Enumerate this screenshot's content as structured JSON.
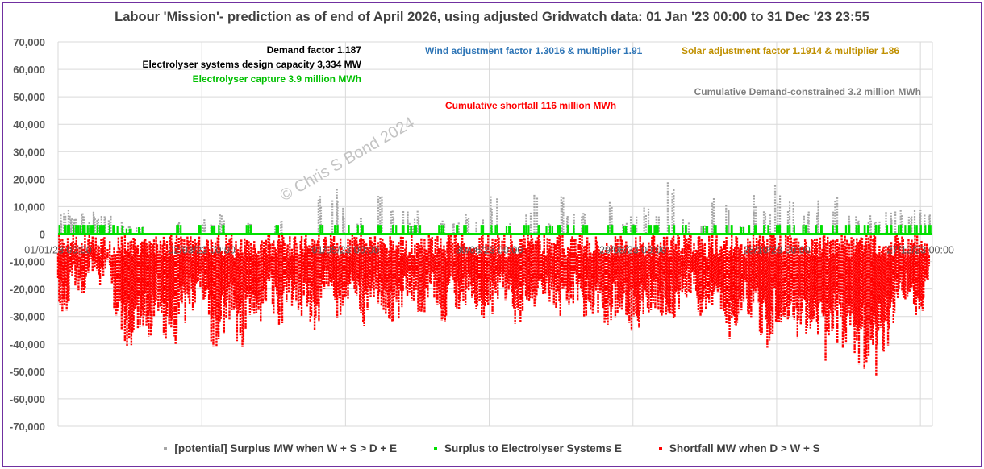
{
  "chart_data": {
    "type": "scatter",
    "title": "Labour 'Mission'- prediction as of end of April 2026, using adjusted Gridwatch data:  01 Jan '23 00:00 to 31 Dec '23 23:55",
    "ylim": [
      -70000,
      70000
    ],
    "y_ticks": [
      "70,000",
      "60,000",
      "50,000",
      "40,000",
      "30,000",
      "20,000",
      "10,000",
      "0",
      "-10,000",
      "-20,000",
      "-30,000",
      "-40,000",
      "-50,000",
      "-60,000",
      "-70,000"
    ],
    "x_ticks": [
      "01/01/23 00:00",
      "02/03/23 00:00",
      "01/05/23 00:00",
      "30/06/23 00:00",
      "29/08/23 00:00",
      "28/10/23 00:00",
      "27/12/23 00:00"
    ],
    "grid": true,
    "legend_position": "bottom",
    "annotations": {
      "demand_factor": "Demand factor 1.187",
      "design_capacity": "Electrolyser systems design capacity 3,334 MW",
      "electrolyser_capture": "Electrolyser capture 3.9 million MWh",
      "wind_factor": "Wind adjustment factor 1.3016 & multiplier 1.91",
      "solar_factor": "Solar adjustment factor 1.1914 & multiplier 1.86",
      "cumulative_demand": "Cumulative Demand-constrained 3.2 million MWh",
      "shortfall": "Cumulative shortfall 116 million MWh",
      "watermark": "© Chris S Bond  2024"
    },
    "series": [
      {
        "name": "[potential] Surplus MW when W + S > D + E",
        "color": "#a6a6a6",
        "x_days": [
          2,
          4,
          6,
          8,
          10,
          12,
          14,
          16,
          19,
          22,
          26,
          30,
          34,
          50,
          60,
          64,
          68,
          80,
          92,
          110,
          116,
          120,
          126,
          134,
          140,
          145,
          148,
          150,
          160,
          166,
          170,
          176,
          182,
          188,
          196,
          200,
          205,
          210,
          214,
          220,
          230,
          236,
          240,
          246,
          250,
          256,
          262,
          270,
          274,
          280,
          286,
          290,
          296,
          300,
          306,
          312,
          318,
          324,
          330,
          334,
          338,
          342,
          347,
          351,
          355,
          359,
          363
        ],
        "values": [
          8000,
          9500,
          7000,
          6000,
          9000,
          7500,
          9000,
          6000,
          8500,
          7000,
          5000,
          3000,
          3500,
          5000,
          6000,
          4000,
          8500,
          5500,
          5000,
          14000,
          17000,
          10000,
          6500,
          19000,
          9000,
          9500,
          4500,
          9500,
          6000,
          6500,
          9000,
          6000,
          14000,
          4000,
          12000,
          17000,
          4000,
          16000,
          10000,
          10000,
          12000,
          4500,
          6500,
          11000,
          10000,
          21000,
          6000,
          4000,
          13500,
          12000,
          3000,
          15000,
          10000,
          20000,
          15000,
          10000,
          13000,
          14000,
          8000,
          7000,
          7500,
          5000,
          9000,
          9000,
          8500,
          9000,
          8000
        ]
      },
      {
        "name": "Surplus to Electrolyser Systems E",
        "color": "#00e000",
        "capacity_mw": 3334,
        "x_days": [
          2,
          4,
          6,
          8,
          10,
          12,
          14,
          16,
          19,
          22,
          26,
          30,
          34,
          50,
          60,
          64,
          68,
          80,
          92,
          110,
          116,
          120,
          126,
          134,
          140,
          145,
          148,
          150,
          160,
          166,
          170,
          176,
          182,
          188,
          196,
          200,
          205,
          210,
          214,
          220,
          230,
          236,
          240,
          246,
          250,
          256,
          262,
          270,
          274,
          280,
          286,
          290,
          296,
          300,
          306,
          312,
          318,
          324,
          330,
          334,
          338,
          342,
          347,
          351,
          355,
          359,
          363
        ],
        "values": [
          3334,
          3334,
          3334,
          3334,
          3334,
          3334,
          3334,
          3334,
          3334,
          3334,
          3000,
          2000,
          2500,
          3334,
          3334,
          3000,
          3334,
          3334,
          3334,
          3334,
          3334,
          3334,
          3334,
          3334,
          3334,
          3334,
          3000,
          3334,
          3334,
          3334,
          3334,
          3334,
          3334,
          3000,
          3334,
          3334,
          3000,
          3334,
          3334,
          3334,
          3334,
          3000,
          3334,
          3334,
          3334,
          3334,
          3334,
          3000,
          3334,
          3334,
          2500,
          3334,
          3334,
          3334,
          3334,
          3334,
          3334,
          3334,
          3334,
          3334,
          3334,
          3334,
          3334,
          3334,
          3334,
          3334,
          3334
        ]
      },
      {
        "name": "Shortfall MW when D > W + S",
        "color": "#ff0000",
        "x_days": [
          0,
          3,
          6,
          10,
          14,
          18,
          21,
          24,
          27,
          31,
          35,
          38,
          41,
          44,
          47,
          52,
          56,
          60,
          64,
          68,
          72,
          76,
          80,
          84,
          88,
          92,
          96,
          100,
          104,
          108,
          112,
          116,
          120,
          124,
          128,
          132,
          136,
          140,
          144,
          148,
          152,
          156,
          160,
          164,
          168,
          172,
          176,
          180,
          184,
          188,
          192,
          196,
          200,
          204,
          208,
          212,
          216,
          220,
          224,
          228,
          232,
          236,
          240,
          244,
          248,
          252,
          256,
          260,
          264,
          268,
          272,
          276,
          280,
          284,
          288,
          292,
          296,
          300,
          304,
          308,
          312,
          316,
          320,
          324,
          328,
          332,
          335,
          338,
          341,
          344,
          347,
          350,
          353,
          356,
          359,
          362,
          364
        ],
        "values": [
          -22000,
          -33000,
          -15000,
          -25000,
          -12000,
          -20000,
          -8000,
          -35000,
          -38000,
          -42000,
          -30000,
          -44000,
          -25000,
          -35000,
          -42000,
          -33000,
          -28000,
          -22000,
          -40000,
          -38000,
          -30000,
          -44000,
          -28000,
          -35000,
          -20000,
          -38000,
          -22000,
          -30000,
          -28000,
          -35000,
          -18000,
          -32000,
          -25000,
          -20000,
          -33000,
          -22000,
          -28000,
          -35000,
          -26000,
          -24000,
          -30000,
          -20000,
          -36000,
          -25000,
          -27000,
          -24000,
          -28000,
          -31000,
          -22000,
          -26000,
          -34000,
          -27000,
          -25000,
          -20000,
          -33000,
          -26000,
          -24000,
          -30000,
          -28000,
          -36000,
          -30000,
          -28000,
          -35000,
          -32000,
          -26000,
          -30000,
          -34000,
          -28000,
          -20000,
          -31000,
          -24000,
          -26000,
          -38000,
          -30000,
          -28000,
          -35000,
          -40000,
          -33000,
          -30000,
          -38000,
          -35000,
          -32000,
          -45000,
          -38000,
          -40000,
          -44000,
          -46000,
          -48000,
          -51000,
          -42000,
          -38000,
          -30000,
          -25000,
          -20000,
          -35000,
          -22000,
          -18000
        ]
      }
    ]
  },
  "legend": {
    "grey_label": "[potential] Surplus MW when W + S > D + E",
    "green_label": "Surplus to Electrolyser Systems E",
    "red_label": "Shortfall MW when D > W + S"
  }
}
